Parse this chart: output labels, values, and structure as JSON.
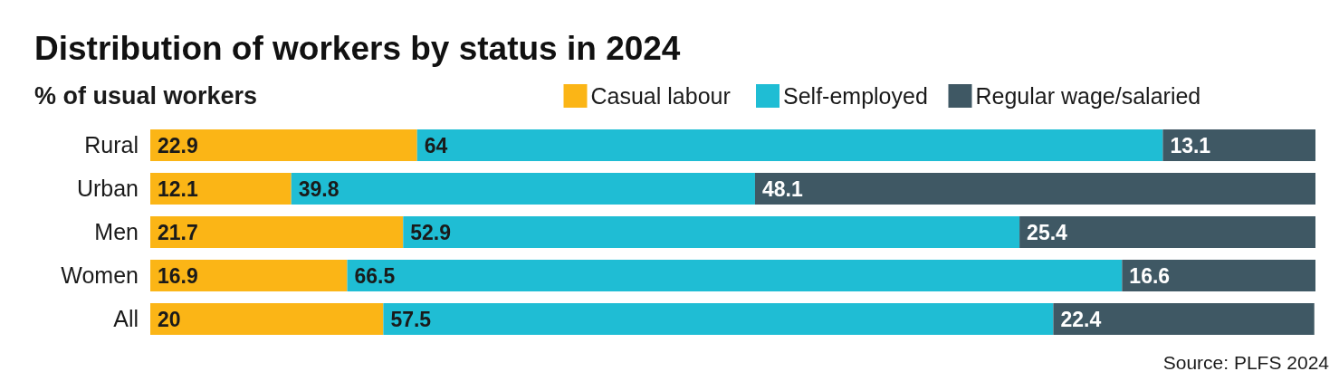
{
  "chart_data": {
    "type": "bar",
    "orientation": "horizontal",
    "stacked": true,
    "title": "Distribution of workers by status in 2024",
    "subtitle": "% of usual workers",
    "categories": [
      "Rural",
      "Urban",
      "Men",
      "Women",
      "All"
    ],
    "series": [
      {
        "name": "Casual labour",
        "color": "#fbb516",
        "values": [
          22.9,
          12.1,
          21.7,
          16.9,
          20
        ]
      },
      {
        "name": "Self-employed",
        "color": "#1fbdd4",
        "values": [
          64,
          39.8,
          52.9,
          66.5,
          57.5
        ]
      },
      {
        "name": "Regular wage/salaried",
        "color": "#3f5864",
        "values": [
          13.1,
          48.1,
          25.4,
          16.6,
          22.4
        ]
      }
    ],
    "data_labels": true,
    "legend": "top right",
    "annotations": [
      "Source: PLFS 2024"
    ]
  }
}
